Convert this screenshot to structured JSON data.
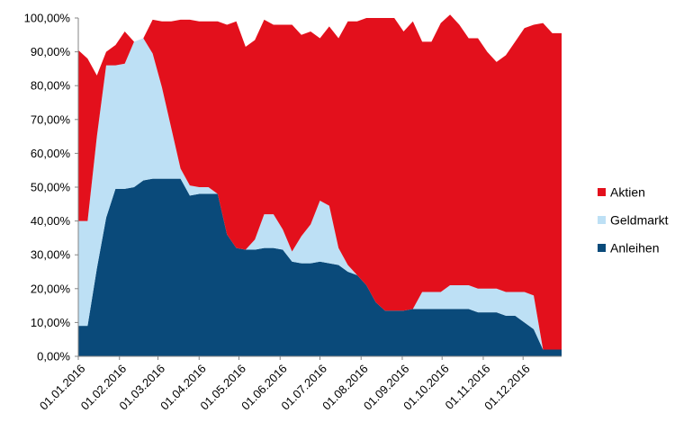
{
  "chart_data": {
    "type": "area",
    "stacked": true,
    "x": [
      "2016-01-01",
      "2016-01-08",
      "2016-01-15",
      "2016-01-22",
      "2016-01-29",
      "2016-02-05",
      "2016-02-12",
      "2016-02-19",
      "2016-02-26",
      "2016-03-04",
      "2016-03-11",
      "2016-03-18",
      "2016-03-25",
      "2016-04-01",
      "2016-04-08",
      "2016-04-15",
      "2016-04-22",
      "2016-04-29",
      "2016-05-06",
      "2016-05-13",
      "2016-05-20",
      "2016-05-27",
      "2016-06-03",
      "2016-06-10",
      "2016-06-17",
      "2016-06-24",
      "2016-07-01",
      "2016-07-08",
      "2016-07-15",
      "2016-07-22",
      "2016-07-29",
      "2016-08-05",
      "2016-08-12",
      "2016-08-19",
      "2016-08-26",
      "2016-09-02",
      "2016-09-09",
      "2016-09-16",
      "2016-09-23",
      "2016-09-30",
      "2016-10-07",
      "2016-10-14",
      "2016-10-21",
      "2016-10-28",
      "2016-11-04",
      "2016-11-11",
      "2016-11-18",
      "2016-11-25",
      "2016-12-02",
      "2016-12-09",
      "2016-12-16",
      "2016-12-23",
      "2016-12-30"
    ],
    "series": [
      {
        "name": "Anleihen",
        "color": "#0a4a7a",
        "values": [
          9,
          9,
          26,
          41,
          49.5,
          49.5,
          50,
          52,
          52.5,
          52.5,
          52.5,
          52.5,
          47.5,
          48,
          48,
          48,
          36,
          32,
          31.5,
          31.5,
          32,
          32,
          31.5,
          28,
          27.5,
          27.5,
          28,
          27.5,
          27,
          25,
          24,
          21,
          16,
          13.5,
          13.5,
          13.5,
          14,
          14,
          14,
          14,
          14,
          14,
          14,
          13,
          13,
          13,
          12,
          12,
          10,
          8,
          2,
          2,
          2
        ]
      },
      {
        "name": "Geldmarkt",
        "color": "#bde0f5",
        "values": [
          31,
          31,
          39,
          45,
          36.5,
          37,
          43,
          42,
          37,
          27,
          15,
          3,
          3,
          2,
          2,
          0,
          0,
          0,
          0,
          3,
          10,
          10,
          6,
          3,
          8,
          11.5,
          18,
          17,
          5,
          2,
          0,
          0,
          0,
          0,
          0,
          0,
          0,
          5,
          5,
          5,
          7,
          7,
          7,
          7,
          7,
          7,
          7,
          7,
          9,
          10,
          0,
          0,
          0
        ]
      },
      {
        "name": "Aktien",
        "color": "#e3101c",
        "values": [
          50.5,
          48,
          18,
          4,
          6,
          9.5,
          0,
          0,
          10,
          19.5,
          31.5,
          44,
          49,
          49,
          49,
          51,
          62,
          67,
          60,
          59,
          57.5,
          56,
          60.5,
          67,
          59.5,
          57,
          48,
          53,
          62,
          72,
          75,
          79,
          84,
          86.5,
          86.5,
          82.5,
          85,
          74,
          74,
          79.5,
          80,
          77,
          73,
          74,
          70,
          67,
          70,
          74,
          78,
          80,
          96.5,
          93.5,
          93.5
        ]
      }
    ],
    "x_tick_labels": [
      "01.01.2016",
      "01.02.2016",
      "01.03.2016",
      "01.04.2016",
      "01.05.2016",
      "01.06.2016",
      "01.07.2016",
      "01.08.2016",
      "01.09.2016",
      "01.10.2016",
      "01.11.2016",
      "01.12.2016"
    ],
    "y_tick_labels": [
      "0,00%",
      "10,00%",
      "20,00%",
      "30,00%",
      "40,00%",
      "50,00%",
      "60,00%",
      "70,00%",
      "80,00%",
      "90,00%",
      "100,00%"
    ],
    "ylim": [
      0,
      100
    ],
    "y_unit": "%",
    "title": "",
    "xlabel": "",
    "ylabel": "",
    "grid": false,
    "legend": {
      "position": "right",
      "entries": [
        {
          "label": "Aktien",
          "color": "#e3101c"
        },
        {
          "label": "Geldmarkt",
          "color": "#bde0f5"
        },
        {
          "label": "Anleihen",
          "color": "#0a4a7a"
        }
      ]
    }
  }
}
